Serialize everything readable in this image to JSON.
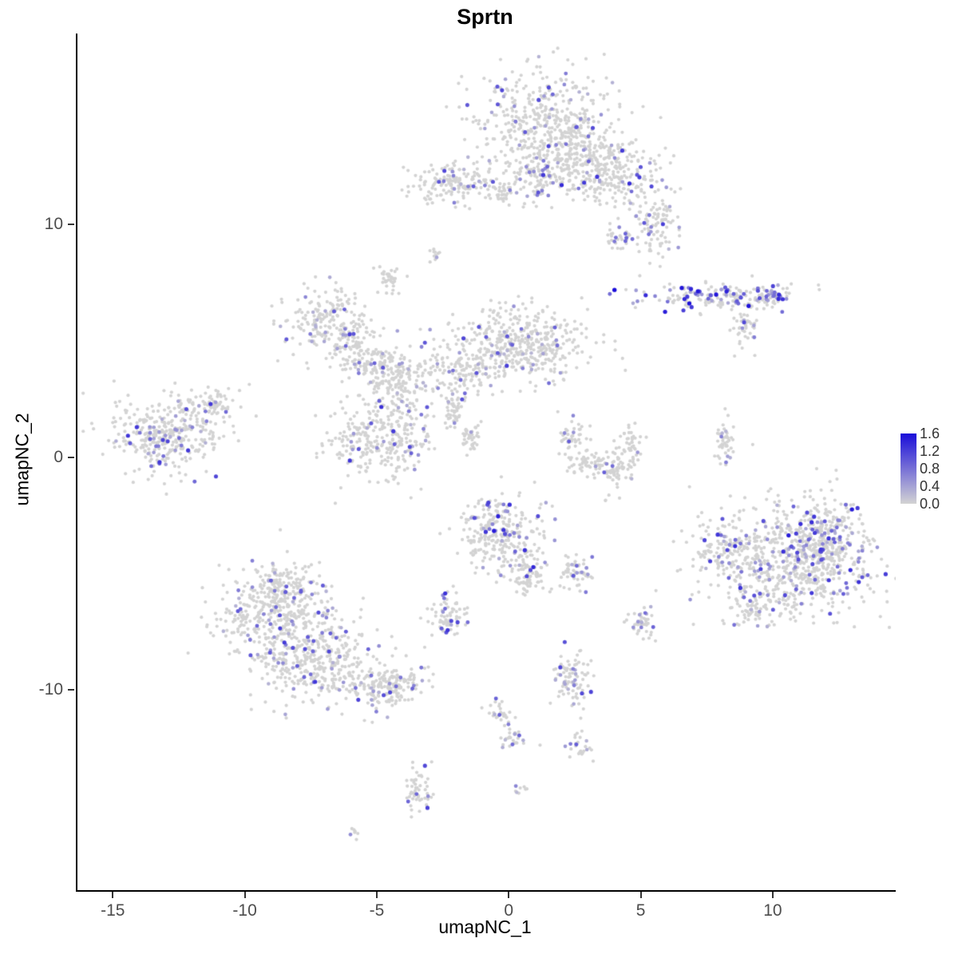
{
  "title": "Sprtn",
  "chart_data": {
    "type": "scatter",
    "title": "Sprtn",
    "xlabel": "umapNC_1",
    "ylabel": "umapNC_2",
    "grid": false,
    "background": "#ffffff",
    "point_color_low": "#D3D3D3",
    "point_color_high": "#1A0DD9",
    "axes": {
      "x": {
        "label": "umapNC_1",
        "range": [
          -16.4,
          14.6
        ],
        "ticks": [
          -15,
          -10,
          -5,
          0,
          5,
          10
        ]
      },
      "y": {
        "label": "umapNC_2",
        "range": [
          -18.6,
          18.2
        ],
        "ticks": [
          -10,
          0,
          10
        ]
      }
    },
    "legend": {
      "position": "right",
      "ticks": [
        "1.6",
        "1.2",
        "0.8",
        "0.4",
        "0.0"
      ],
      "vmin": 0.0,
      "vmax": 1.6
    },
    "clusters": [
      {
        "x": 1.45,
        "y": 14.2,
        "sx": 1.35,
        "sy": 1.3,
        "n": 520,
        "frac": 0.1,
        "vmax": 1.3
      },
      {
        "x": 2.6,
        "y": 13.0,
        "sx": 0.7,
        "sy": 0.6,
        "n": 130,
        "frac": 0.1,
        "vmax": 1.2
      },
      {
        "x": 3.8,
        "y": 12.2,
        "sx": 0.9,
        "sy": 0.7,
        "n": 230,
        "frac": 0.12,
        "vmax": 1.4
      },
      {
        "x": 5.5,
        "y": 10.2,
        "sx": 0.45,
        "sy": 0.8,
        "n": 110,
        "frac": 0.1,
        "vmax": 1.2
      },
      {
        "x": 4.1,
        "y": 9.4,
        "sx": 0.25,
        "sy": 0.25,
        "n": 30,
        "frac": 0.1,
        "vmax": 1.0
      },
      {
        "x": -2.2,
        "y": 11.8,
        "sx": 0.85,
        "sy": 0.45,
        "n": 150,
        "frac": 0.07,
        "vmax": 1.2
      },
      {
        "x": -0.3,
        "y": 11.4,
        "sx": 0.4,
        "sy": 0.3,
        "n": 45,
        "frac": 0.07,
        "vmax": 1.0
      },
      {
        "x": 1.0,
        "y": 11.9,
        "sx": 0.35,
        "sy": 0.5,
        "n": 60,
        "frac": 0.15,
        "vmax": 1.5
      },
      {
        "x": -2.8,
        "y": 8.7,
        "sx": 0.12,
        "sy": 0.18,
        "n": 12,
        "frac": 0.1,
        "vmax": 0.8
      },
      {
        "x": -4.5,
        "y": 7.6,
        "sx": 0.22,
        "sy": 0.3,
        "n": 35,
        "frac": 0.05,
        "vmax": 0.8
      },
      {
        "x": 8.0,
        "y": 6.9,
        "sx": 1.4,
        "sy": 0.28,
        "n": 180,
        "frac": 0.3,
        "vmax": 1.6
      },
      {
        "x": 9.9,
        "y": 6.9,
        "sx": 0.3,
        "sy": 0.2,
        "n": 40,
        "frac": 0.5,
        "vmax": 1.6
      },
      {
        "x": 8.8,
        "y": 5.6,
        "sx": 0.3,
        "sy": 0.5,
        "n": 45,
        "frac": 0.15,
        "vmax": 1.2
      },
      {
        "x": -6.9,
        "y": 5.8,
        "sx": 0.8,
        "sy": 0.75,
        "n": 210,
        "frac": 0.09,
        "vmax": 1.3
      },
      {
        "x": -5.6,
        "y": 4.4,
        "sx": 0.5,
        "sy": 0.5,
        "n": 110,
        "frac": 0.08,
        "vmax": 1.1
      },
      {
        "x": -4.4,
        "y": 3.4,
        "sx": 0.6,
        "sy": 0.6,
        "n": 150,
        "frac": 0.08,
        "vmax": 1.2
      },
      {
        "x": 0.2,
        "y": 4.9,
        "sx": 1.4,
        "sy": 0.75,
        "n": 460,
        "frac": 0.07,
        "vmax": 1.2
      },
      {
        "x": -2.2,
        "y": 3.6,
        "sx": 0.8,
        "sy": 0.55,
        "n": 130,
        "frac": 0.07,
        "vmax": 1.1
      },
      {
        "x": -4.9,
        "y": 0.9,
        "sx": 1.0,
        "sy": 0.95,
        "n": 330,
        "frac": 0.1,
        "vmax": 1.3
      },
      {
        "x": -2.1,
        "y": 1.9,
        "sx": 0.18,
        "sy": 0.3,
        "n": 40,
        "frac": 0.1,
        "vmax": 1.0
      },
      {
        "x": -1.5,
        "y": 0.9,
        "sx": 0.18,
        "sy": 0.35,
        "n": 40,
        "frac": 0.1,
        "vmax": 1.0
      },
      {
        "x": -13.0,
        "y": 1.0,
        "sx": 1.05,
        "sy": 0.8,
        "n": 380,
        "frac": 0.16,
        "vmax": 1.4
      },
      {
        "x": -11.3,
        "y": 2.3,
        "sx": 0.45,
        "sy": 0.35,
        "n": 60,
        "frac": 0.08,
        "vmax": 1.0
      },
      {
        "x": 2.4,
        "y": 0.8,
        "sx": 0.3,
        "sy": 0.35,
        "n": 45,
        "frac": 0.08,
        "vmax": 1.0
      },
      {
        "x": 3.0,
        "y": -0.3,
        "sx": 0.45,
        "sy": 0.3,
        "n": 60,
        "frac": 0.08,
        "vmax": 1.0
      },
      {
        "x": 4.0,
        "y": -0.5,
        "sx": 0.35,
        "sy": 0.3,
        "n": 50,
        "frac": 0.06,
        "vmax": 1.0
      },
      {
        "x": 4.5,
        "y": 0.5,
        "sx": 0.25,
        "sy": 0.4,
        "n": 45,
        "frac": 0.06,
        "vmax": 1.0
      },
      {
        "x": 8.1,
        "y": 0.6,
        "sx": 0.14,
        "sy": 0.5,
        "n": 45,
        "frac": 0.15,
        "vmax": 1.2
      },
      {
        "x": 10.6,
        "y": -4.4,
        "sx": 1.6,
        "sy": 1.25,
        "n": 700,
        "frac": 0.15,
        "vmax": 1.4
      },
      {
        "x": 11.9,
        "y": -3.4,
        "sx": 0.8,
        "sy": 0.8,
        "n": 200,
        "frac": 0.2,
        "vmax": 1.5
      },
      {
        "x": 8.3,
        "y": -3.8,
        "sx": 0.5,
        "sy": 0.6,
        "n": 90,
        "frac": 0.12,
        "vmax": 1.2
      },
      {
        "x": 9.2,
        "y": -6.6,
        "sx": 0.4,
        "sy": 0.4,
        "n": 60,
        "frac": 0.1,
        "vmax": 1.1
      },
      {
        "x": -0.4,
        "y": -3.3,
        "sx": 0.75,
        "sy": 0.85,
        "n": 280,
        "frac": 0.14,
        "vmax": 1.5
      },
      {
        "x": 0.7,
        "y": -5.0,
        "sx": 0.3,
        "sy": 0.5,
        "n": 80,
        "frac": 0.12,
        "vmax": 1.2
      },
      {
        "x": 2.5,
        "y": -4.9,
        "sx": 0.3,
        "sy": 0.35,
        "n": 55,
        "frac": 0.18,
        "vmax": 1.3
      },
      {
        "x": -2.4,
        "y": -6.8,
        "sx": 0.38,
        "sy": 0.4,
        "n": 75,
        "frac": 0.12,
        "vmax": 1.4
      },
      {
        "x": -8.8,
        "y": -6.8,
        "sx": 1.15,
        "sy": 0.95,
        "n": 420,
        "frac": 0.12,
        "vmax": 1.3
      },
      {
        "x": -7.4,
        "y": -8.8,
        "sx": 1.25,
        "sy": 0.8,
        "n": 340,
        "frac": 0.12,
        "vmax": 1.3
      },
      {
        "x": -4.8,
        "y": -9.8,
        "sx": 0.8,
        "sy": 0.5,
        "n": 200,
        "frac": 0.1,
        "vmax": 1.2
      },
      {
        "x": -8.7,
        "y": -5.3,
        "sx": 0.45,
        "sy": 0.35,
        "n": 70,
        "frac": 0.1,
        "vmax": 1.1
      },
      {
        "x": 4.9,
        "y": -7.2,
        "sx": 0.28,
        "sy": 0.33,
        "n": 45,
        "frac": 0.12,
        "vmax": 1.2
      },
      {
        "x": 2.3,
        "y": -9.5,
        "sx": 0.35,
        "sy": 0.6,
        "n": 90,
        "frac": 0.18,
        "vmax": 1.3
      },
      {
        "x": -0.5,
        "y": -11.0,
        "sx": 0.25,
        "sy": 0.3,
        "n": 25,
        "frac": 0.1,
        "vmax": 1.0
      },
      {
        "x": 0.1,
        "y": -12.1,
        "sx": 0.3,
        "sy": 0.3,
        "n": 30,
        "frac": 0.15,
        "vmax": 1.1
      },
      {
        "x": 2.6,
        "y": -12.4,
        "sx": 0.25,
        "sy": 0.25,
        "n": 25,
        "frac": 0.1,
        "vmax": 1.0
      },
      {
        "x": -3.5,
        "y": -14.2,
        "sx": 0.25,
        "sy": 0.55,
        "n": 55,
        "frac": 0.1,
        "vmax": 1.2
      },
      {
        "x": 0.4,
        "y": -14.1,
        "sx": 0.15,
        "sy": 0.15,
        "n": 8,
        "frac": 0.1,
        "vmax": 0.8
      },
      {
        "x": -6.0,
        "y": -16.1,
        "sx": 0.14,
        "sy": 0.12,
        "n": 7,
        "frac": 0.1,
        "vmax": 0.6
      },
      {
        "x": 1.9,
        "y": 3.3,
        "sx": 0.1,
        "sy": 0.1,
        "n": 3,
        "frac": 0.0,
        "vmax": 0.0
      },
      {
        "x": 3.8,
        "y": -1.7,
        "sx": 0.15,
        "sy": 0.15,
        "n": 4,
        "frac": 0.0,
        "vmax": 0.0
      }
    ]
  }
}
